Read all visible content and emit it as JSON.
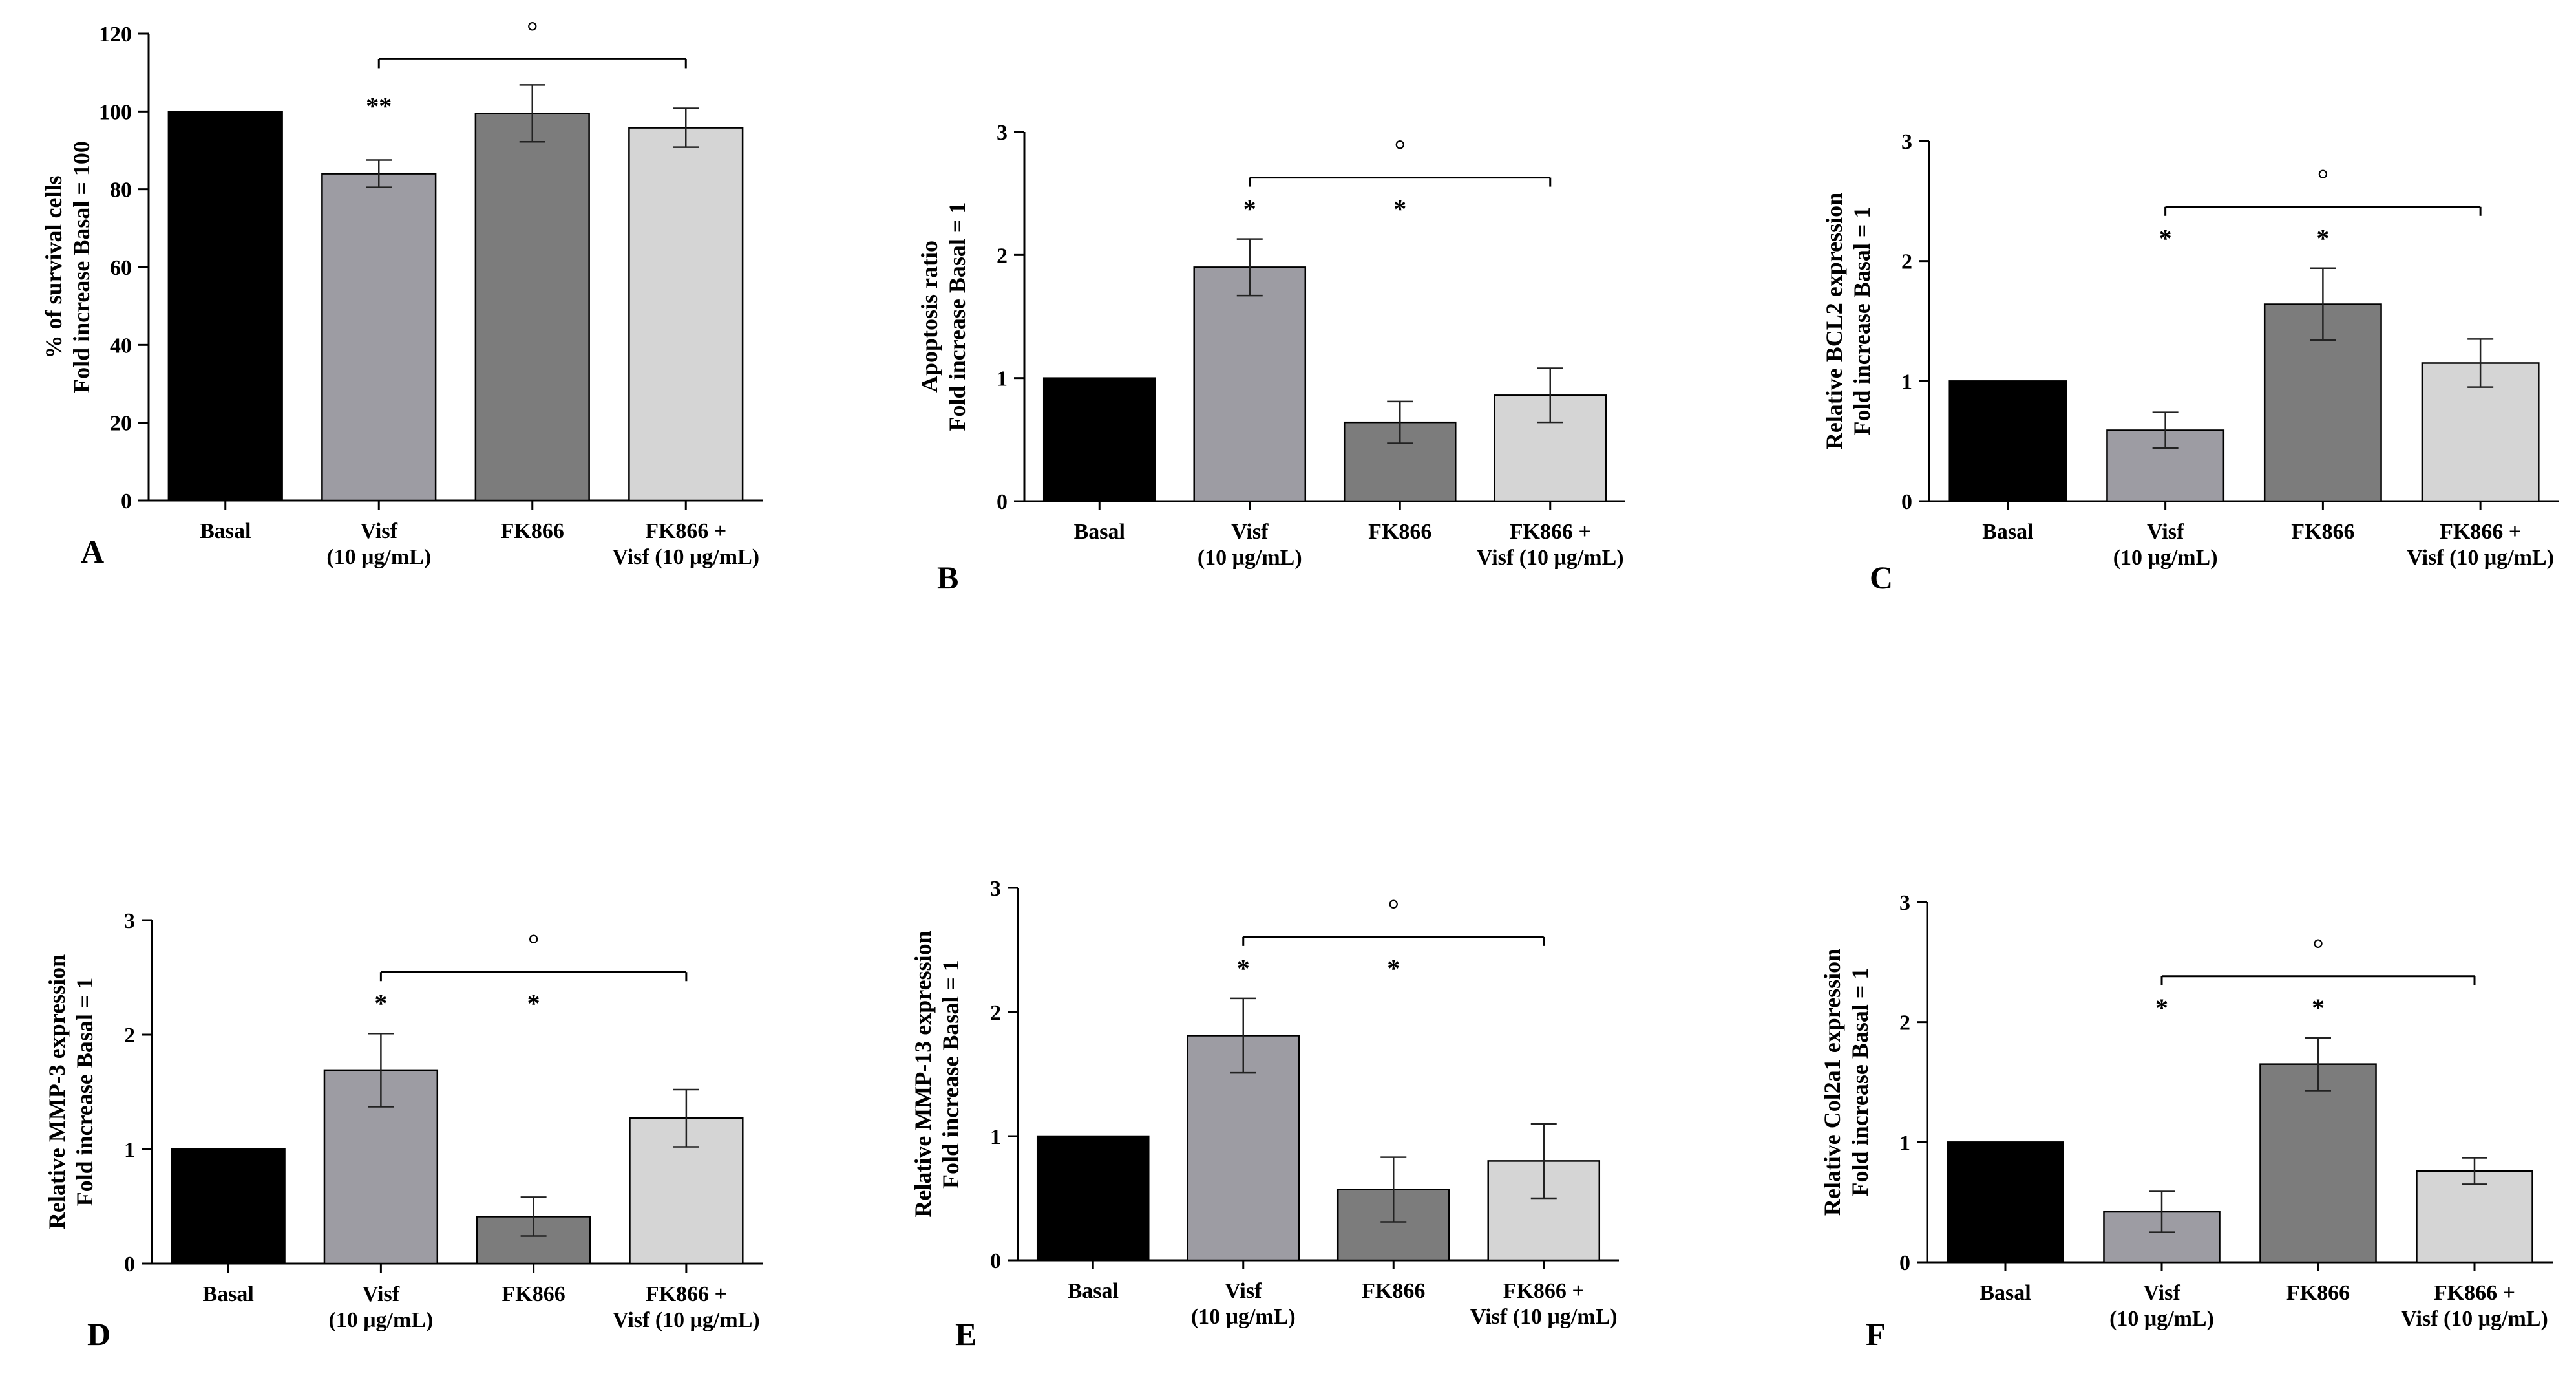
{
  "chart_data": [
    {
      "panel": "A",
      "type": "bar",
      "ylabel": [
        "% of survival cells",
        "Fold increase Basal = 100"
      ],
      "ylim": [
        0,
        120
      ],
      "yticks": [
        0,
        20,
        40,
        60,
        80,
        100,
        120
      ],
      "categories": [
        [
          "Basal"
        ],
        [
          "Visf",
          "(10 μg/mL)"
        ],
        [
          "FK866"
        ],
        [
          "FK866 +",
          "Visf (10 μg/mL)"
        ]
      ],
      "values": [
        100,
        84,
        99.5,
        95.8
      ],
      "errors": [
        0,
        3.5,
        7.3,
        5
      ],
      "colors": [
        "#000000",
        "#9d9ca3",
        "#7c7c7c",
        "#d5d5d5"
      ],
      "significance": [
        "",
        "**",
        "",
        ""
      ],
      "bracket": {
        "from": 1,
        "to": 3,
        "symbol": "°"
      }
    },
    {
      "panel": "B",
      "type": "bar",
      "ylabel": [
        "Apoptosis ratio",
        "Fold increase Basal = 1"
      ],
      "ylim": [
        0,
        3
      ],
      "yticks": [
        0,
        1,
        2,
        3
      ],
      "categories": [
        [
          "Basal"
        ],
        [
          "Visf",
          "(10 μg/mL)"
        ],
        [
          "FK866"
        ],
        [
          "FK866 +",
          "Visf (10 μg/mL)"
        ]
      ],
      "values": [
        1,
        1.9,
        0.64,
        0.86
      ],
      "errors": [
        0,
        0.23,
        0.17,
        0.22
      ],
      "colors": [
        "#000000",
        "#9d9ca3",
        "#7c7c7c",
        "#d5d5d5"
      ],
      "significance": [
        "",
        "*",
        "*",
        ""
      ],
      "bracket": {
        "from": 1,
        "to": 3,
        "symbol": "°"
      }
    },
    {
      "panel": "C",
      "type": "bar",
      "ylabel": [
        "Relative BCL2 expression",
        "Fold increase Basal = 1"
      ],
      "ylim": [
        0,
        3
      ],
      "yticks": [
        0,
        1,
        2,
        3
      ],
      "categories": [
        [
          "Basal"
        ],
        [
          "Visf",
          "(10 μg/mL)"
        ],
        [
          "FK866"
        ],
        [
          "FK866 +",
          "Visf (10 μg/mL)"
        ]
      ],
      "values": [
        1,
        0.59,
        1.64,
        1.15
      ],
      "errors": [
        0,
        0.15,
        0.3,
        0.2
      ],
      "colors": [
        "#000000",
        "#9d9ca3",
        "#7c7c7c",
        "#d5d5d5"
      ],
      "significance": [
        "",
        "*",
        "*",
        ""
      ],
      "bracket": {
        "from": 1,
        "to": 3,
        "symbol": "°"
      }
    },
    {
      "panel": "D",
      "type": "bar",
      "ylabel": [
        "Relative MMP-3 expression",
        "Fold increase Basal = 1"
      ],
      "ylim": [
        0,
        3
      ],
      "yticks": [
        0,
        1,
        2,
        3
      ],
      "categories": [
        [
          "Basal"
        ],
        [
          "Visf",
          "(10 μg/mL)"
        ],
        [
          "FK866"
        ],
        [
          "FK866 +",
          "Visf (10 μg/mL)"
        ]
      ],
      "values": [
        1,
        1.69,
        0.41,
        1.27
      ],
      "errors": [
        0,
        0.32,
        0.17,
        0.25
      ],
      "colors": [
        "#000000",
        "#9d9ca3",
        "#7c7c7c",
        "#d5d5d5"
      ],
      "significance": [
        "",
        "*",
        "*",
        ""
      ],
      "bracket": {
        "from": 1,
        "to": 3,
        "symbol": "°"
      }
    },
    {
      "panel": "E",
      "type": "bar",
      "ylabel": [
        "Relative MMP-13 expression",
        "Fold increase Basal = 1"
      ],
      "ylim": [
        0,
        3
      ],
      "yticks": [
        0,
        1,
        2,
        3
      ],
      "categories": [
        [
          "Basal"
        ],
        [
          "Visf",
          "(10 μg/mL)"
        ],
        [
          "FK866"
        ],
        [
          "FK866 +",
          "Visf (10 μg/mL)"
        ]
      ],
      "values": [
        1,
        1.81,
        0.57,
        0.8
      ],
      "errors": [
        0,
        0.3,
        0.26,
        0.3
      ],
      "colors": [
        "#000000",
        "#9d9ca3",
        "#7c7c7c",
        "#d5d5d5"
      ],
      "significance": [
        "",
        "*",
        "*",
        ""
      ],
      "bracket": {
        "from": 1,
        "to": 3,
        "symbol": "°"
      }
    },
    {
      "panel": "F",
      "type": "bar",
      "ylabel": [
        "Relative Col2a1 expression",
        "Fold increase Basal = 1"
      ],
      "ylim": [
        0,
        3
      ],
      "yticks": [
        0,
        1,
        2,
        3
      ],
      "categories": [
        [
          "Basal"
        ],
        [
          "Visf",
          "(10 μg/mL)"
        ],
        [
          "FK866"
        ],
        [
          "FK866 +",
          "Visf (10 μg/mL)"
        ]
      ],
      "values": [
        1,
        0.42,
        1.65,
        0.76
      ],
      "errors": [
        0,
        0.17,
        0.22,
        0.11
      ],
      "colors": [
        "#000000",
        "#9d9ca3",
        "#7c7c7c",
        "#d5d5d5"
      ],
      "significance": [
        "",
        "*",
        "*",
        ""
      ],
      "bracket": {
        "from": 1,
        "to": 3,
        "symbol": "°"
      }
    }
  ]
}
